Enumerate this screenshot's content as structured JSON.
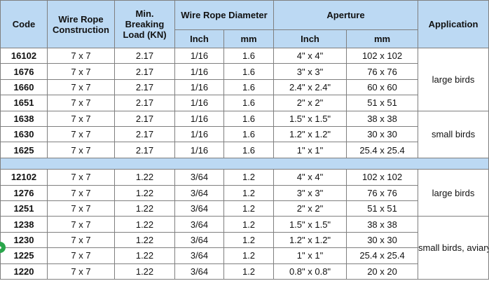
{
  "headers": {
    "code": "Code",
    "construction": [
      "Wire Rope",
      "Construction"
    ],
    "load": [
      "Min.",
      "Breaking",
      "Load (KN)"
    ],
    "diameter": "Wire Rope Diameter",
    "aperture": "Aperture",
    "application": "Application",
    "inch": "Inch",
    "mm": "mm",
    "ap_inch": "Inch",
    "ap_mm": "mm"
  },
  "groups": [
    {
      "rows": [
        {
          "code": "16102",
          "construction": "7 x 7",
          "load": "2.17",
          "inch": "1/16",
          "mm": "1.6",
          "ap_inch": "4\" x 4\"",
          "ap_mm": "102 x 102"
        },
        {
          "code": "1676",
          "construction": "7 x 7",
          "load": "2.17",
          "inch": "1/16",
          "mm": "1.6",
          "ap_inch": "3\" x 3\"",
          "ap_mm": "76 x 76"
        },
        {
          "code": "1660",
          "construction": "7 x 7",
          "load": "2.17",
          "inch": "1/16",
          "mm": "1.6",
          "ap_inch": "2.4\" x 2.4\"",
          "ap_mm": "60 x 60"
        },
        {
          "code": "1651",
          "construction": "7 x 7",
          "load": "2.17",
          "inch": "1/16",
          "mm": "1.6",
          "ap_inch": "2\" x 2\"",
          "ap_mm": "51 x 51"
        },
        {
          "code": "1638",
          "construction": "7 x 7",
          "load": "2.17",
          "inch": "1/16",
          "mm": "1.6",
          "ap_inch": "1.5\" x 1.5\"",
          "ap_mm": "38 x 38"
        },
        {
          "code": "1630",
          "construction": "7 x 7",
          "load": "2.17",
          "inch": "1/16",
          "mm": "1.6",
          "ap_inch": "1.2\" x 1.2\"",
          "ap_mm": "30 x 30"
        },
        {
          "code": "1625",
          "construction": "7 x 7",
          "load": "2.17",
          "inch": "1/16",
          "mm": "1.6",
          "ap_inch": "1\" x 1\"",
          "ap_mm": "25.4 x 25.4"
        }
      ],
      "applications": [
        {
          "label": "large birds",
          "rowspan": 4
        },
        {
          "label": "small birds",
          "rowspan": 3
        }
      ]
    },
    {
      "rows": [
        {
          "code": "12102",
          "construction": "7 x 7",
          "load": "1.22",
          "inch": "3/64",
          "mm": "1.2",
          "ap_inch": "4\" x 4\"",
          "ap_mm": "102 x 102"
        },
        {
          "code": "1276",
          "construction": "7 x 7",
          "load": "1.22",
          "inch": "3/64",
          "mm": "1.2",
          "ap_inch": "3\" x 3\"",
          "ap_mm": "76 x 76"
        },
        {
          "code": "1251",
          "construction": "7 x 7",
          "load": "1.22",
          "inch": "3/64",
          "mm": "1.2",
          "ap_inch": "2\" x 2\"",
          "ap_mm": "51 x 51"
        },
        {
          "code": "1238",
          "construction": "7 x 7",
          "load": "1.22",
          "inch": "3/64",
          "mm": "1.2",
          "ap_inch": "1.5\" x 1.5\"",
          "ap_mm": "38 x 38"
        },
        {
          "code": "1230",
          "construction": "7 x 7",
          "load": "1.22",
          "inch": "3/64",
          "mm": "1.2",
          "ap_inch": "1.2\" x 1.2\"",
          "ap_mm": "30 x 30"
        },
        {
          "code": "1225",
          "construction": "7 x 7",
          "load": "1.22",
          "inch": "3/64",
          "mm": "1.2",
          "ap_inch": "1\" x 1\"",
          "ap_mm": "25.4 x 25.4"
        },
        {
          "code": "1220",
          "construction": "7 x 7",
          "load": "1.22",
          "inch": "3/64",
          "mm": "1.2",
          "ap_inch": "0.8\" x 0.8\"",
          "ap_mm": "20 x 20"
        }
      ],
      "applications": [
        {
          "label": "large birds",
          "rowspan": 3
        },
        {
          "label": "small birds, aviary",
          "rowspan": 4
        }
      ]
    }
  ],
  "badge": {
    "icon": "green-circle-icon"
  }
}
